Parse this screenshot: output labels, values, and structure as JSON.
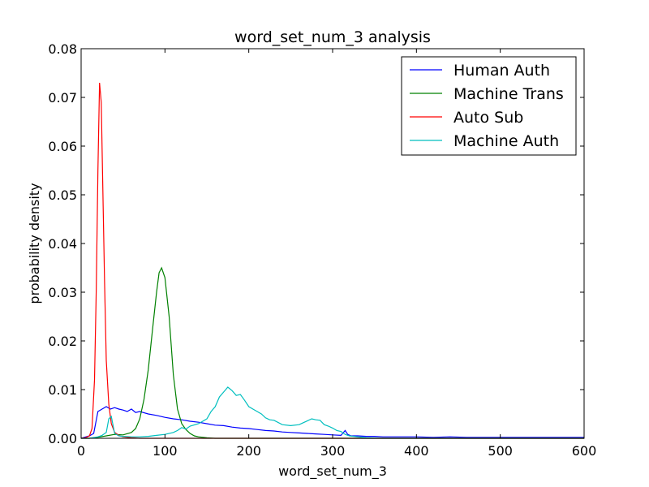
{
  "chart_data": {
    "type": "line",
    "title": "word_set_num_3 analysis",
    "xlabel": "word_set_num_3",
    "ylabel": "probability density",
    "xlim": [
      0,
      600
    ],
    "ylim": [
      0,
      0.08
    ],
    "xticks": [
      0,
      100,
      200,
      300,
      400,
      500,
      600
    ],
    "xtick_labels": [
      "0",
      "100",
      "200",
      "300",
      "400",
      "500",
      "600"
    ],
    "yticks": [
      0.0,
      0.01,
      0.02,
      0.03,
      0.04,
      0.05,
      0.06,
      0.07,
      0.08
    ],
    "ytick_labels": [
      "0.00",
      "0.01",
      "0.02",
      "0.03",
      "0.04",
      "0.05",
      "0.06",
      "0.07",
      "0.08"
    ],
    "grid": false,
    "legend_position": "top-right",
    "series": [
      {
        "name": "Human Auth",
        "color": "#0000ff",
        "x": [
          0,
          10,
          15,
          20,
          25,
          30,
          35,
          40,
          45,
          50,
          55,
          60,
          65,
          70,
          80,
          90,
          100,
          110,
          120,
          130,
          140,
          150,
          160,
          170,
          180,
          190,
          200,
          210,
          220,
          230,
          240,
          250,
          260,
          270,
          280,
          290,
          300,
          310,
          315,
          318,
          322,
          330,
          340,
          350,
          360,
          380,
          400,
          420,
          440,
          460,
          480,
          500,
          520,
          540,
          560,
          580,
          600
        ],
        "y": [
          0.0,
          0.0005,
          0.001,
          0.0055,
          0.006,
          0.0065,
          0.006,
          0.0063,
          0.006,
          0.0058,
          0.0055,
          0.006,
          0.0053,
          0.0055,
          0.005,
          0.0047,
          0.0043,
          0.004,
          0.0038,
          0.0035,
          0.0033,
          0.003,
          0.0027,
          0.0026,
          0.0023,
          0.0021,
          0.002,
          0.0018,
          0.0016,
          0.0015,
          0.0013,
          0.0012,
          0.0011,
          0.001,
          0.0009,
          0.0008,
          0.0007,
          0.0006,
          0.0016,
          0.0008,
          0.0005,
          0.0005,
          0.0004,
          0.0004,
          0.0003,
          0.0003,
          0.0003,
          0.0002,
          0.0003,
          0.0002,
          0.0002,
          0.0002,
          0.0002,
          0.0002,
          0.0002,
          0.0002,
          0.0002
        ]
      },
      {
        "name": "Machine Trans",
        "color": "#008000",
        "x": [
          0,
          10,
          20,
          30,
          40,
          50,
          60,
          65,
          70,
          75,
          80,
          85,
          90,
          93,
          96,
          100,
          105,
          110,
          115,
          120,
          125,
          130,
          135,
          140,
          150,
          160,
          180,
          200,
          250,
          300,
          600
        ],
        "y": [
          0.0,
          0.0,
          0.0002,
          0.0005,
          0.0008,
          0.0007,
          0.0012,
          0.002,
          0.004,
          0.008,
          0.014,
          0.022,
          0.03,
          0.034,
          0.035,
          0.033,
          0.025,
          0.013,
          0.006,
          0.003,
          0.0018,
          0.001,
          0.0005,
          0.0003,
          0.0001,
          0.0,
          0.0,
          0.0,
          0.0,
          0.0,
          0.0
        ]
      },
      {
        "name": "Auto Sub",
        "color": "#ff0000",
        "x": [
          0,
          5,
          10,
          13,
          16,
          18,
          20,
          22,
          24,
          26,
          28,
          30,
          33,
          36,
          40,
          45,
          50,
          60,
          70,
          80,
          100,
          600
        ],
        "y": [
          0.0,
          0.0001,
          0.0005,
          0.002,
          0.012,
          0.03,
          0.055,
          0.073,
          0.069,
          0.05,
          0.032,
          0.016,
          0.007,
          0.003,
          0.0012,
          0.0006,
          0.0003,
          0.0001,
          0.0,
          0.0,
          0.0,
          0.0
        ]
      },
      {
        "name": "Machine Auth",
        "color": "#00bfbf",
        "x": [
          0,
          10,
          20,
          25,
          30,
          33,
          36,
          40,
          45,
          50,
          60,
          70,
          80,
          90,
          100,
          110,
          115,
          120,
          125,
          130,
          140,
          150,
          155,
          160,
          165,
          170,
          175,
          180,
          185,
          190,
          195,
          200,
          205,
          210,
          215,
          220,
          225,
          230,
          240,
          250,
          260,
          265,
          270,
          275,
          280,
          285,
          290,
          295,
          300,
          305,
          310,
          315,
          320,
          330,
          340,
          360,
          400,
          450,
          500,
          550,
          600
        ],
        "y": [
          0.0,
          0.0,
          0.0003,
          0.0006,
          0.0012,
          0.004,
          0.0045,
          0.001,
          0.0005,
          0.0004,
          0.0003,
          0.0003,
          0.0004,
          0.0006,
          0.0008,
          0.0012,
          0.0016,
          0.0022,
          0.0019,
          0.0025,
          0.003,
          0.004,
          0.0055,
          0.0065,
          0.0085,
          0.0095,
          0.0105,
          0.0098,
          0.0088,
          0.009,
          0.0078,
          0.0065,
          0.006,
          0.0055,
          0.005,
          0.0042,
          0.0038,
          0.0037,
          0.0028,
          0.0026,
          0.0028,
          0.0032,
          0.0036,
          0.004,
          0.0038,
          0.0037,
          0.0028,
          0.0025,
          0.0021,
          0.0016,
          0.0014,
          0.0008,
          0.0005,
          0.0003,
          0.0001,
          0.0,
          0.0,
          0.0,
          0.0,
          0.0,
          0.0
        ]
      }
    ]
  }
}
